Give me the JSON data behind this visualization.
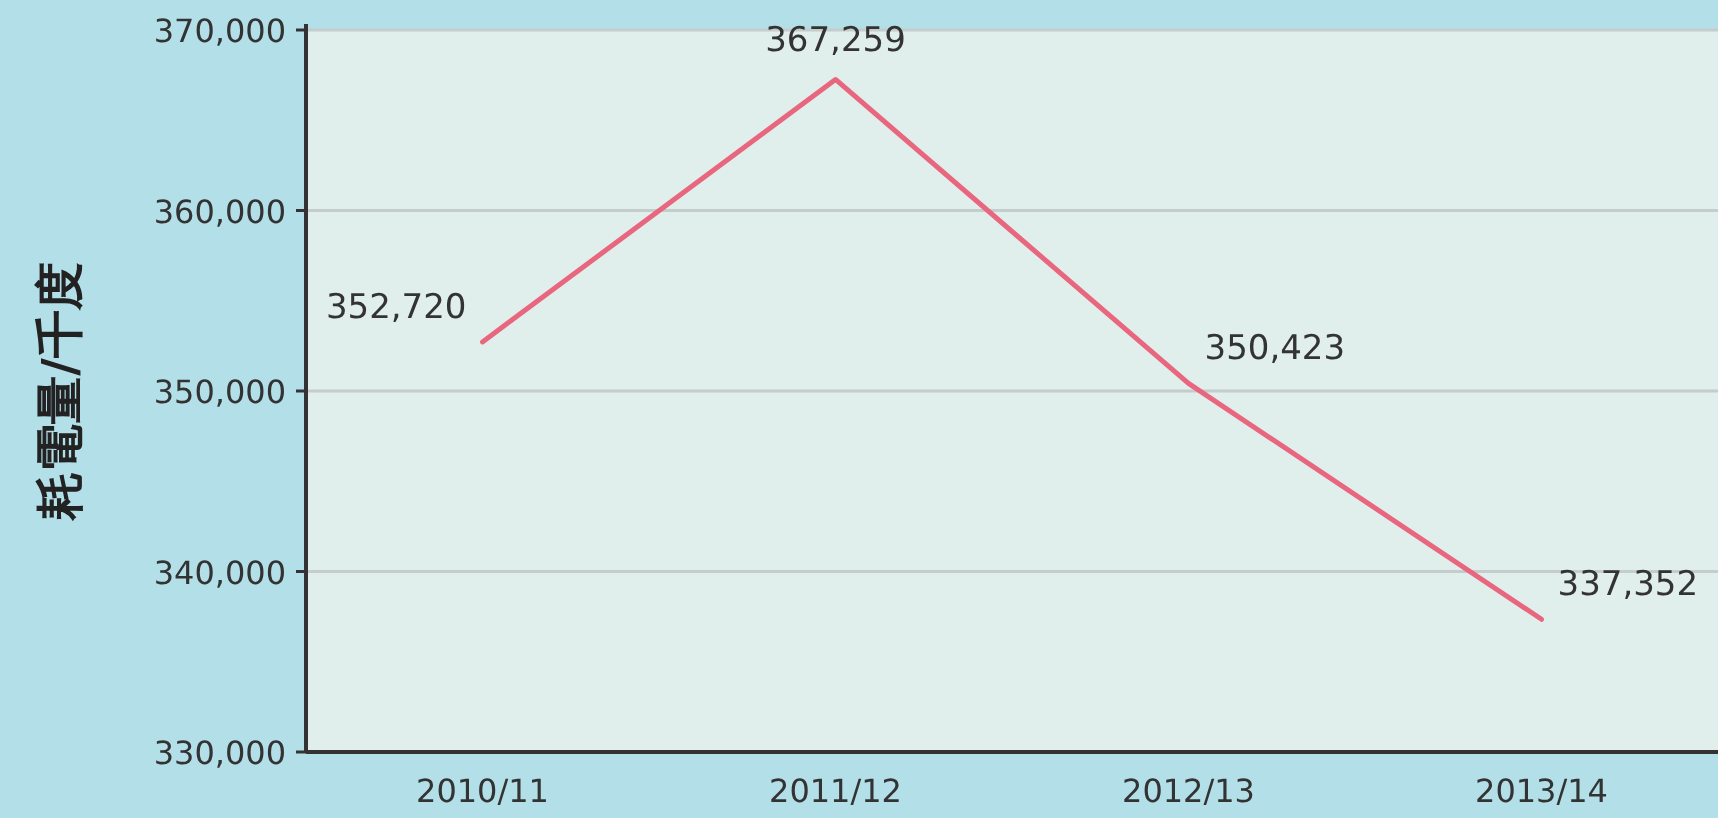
{
  "chart_data": {
    "type": "line",
    "ylabel": "耗電量/千度",
    "categories": [
      "2010/11",
      "2011/12",
      "2012/13",
      "2013/14"
    ],
    "values": [
      352720,
      367259,
      350423,
      337352
    ],
    "value_labels": [
      "352,720",
      "367,259",
      "350,423",
      "337,352"
    ],
    "color": "#e8677f",
    "line_style": "solid",
    "grid": "y",
    "ylim": [
      330000,
      370000
    ],
    "yticks": [
      {
        "value": 330000,
        "label": "330,000"
      },
      {
        "value": 340000,
        "label": "340,000"
      },
      {
        "value": 350000,
        "label": "350,000"
      },
      {
        "value": 360000,
        "label": "360,000"
      },
      {
        "value": 370000,
        "label": "370,000"
      }
    ]
  }
}
